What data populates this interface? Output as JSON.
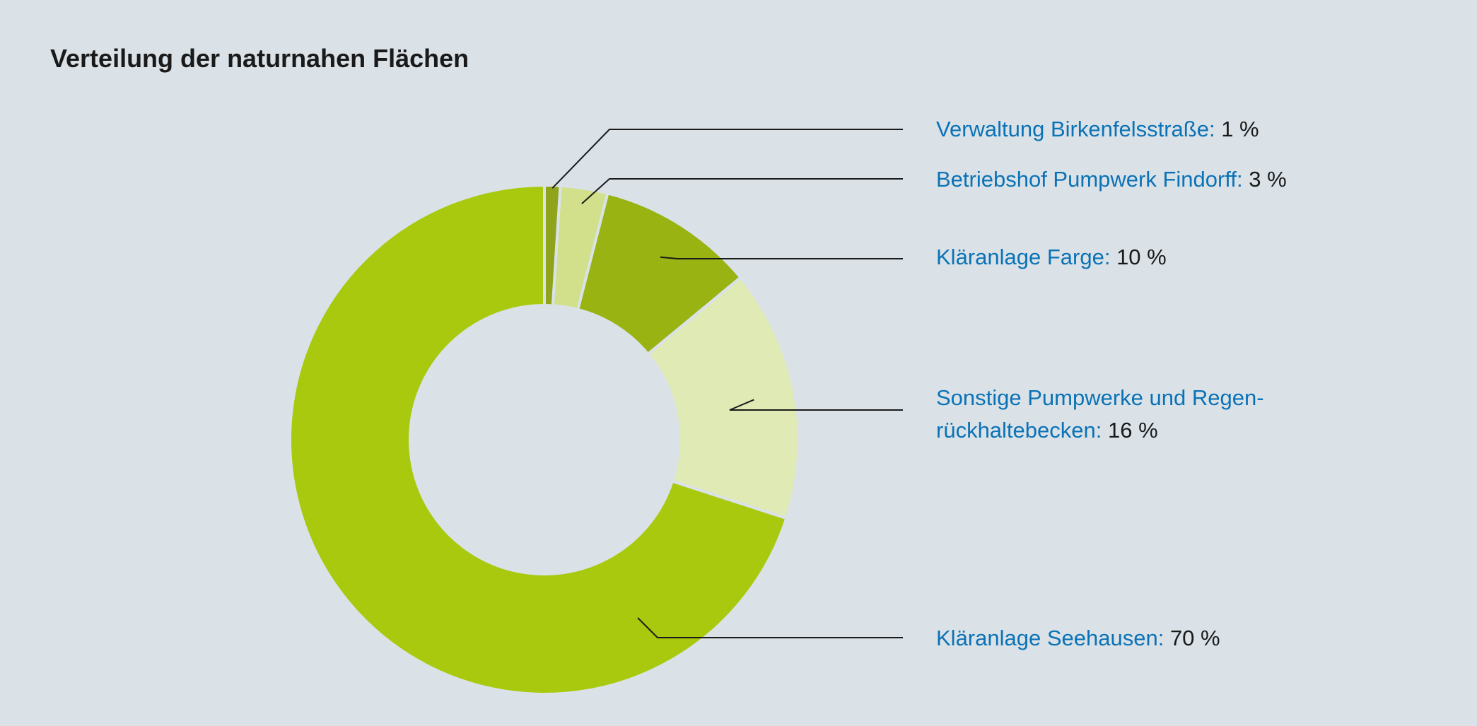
{
  "chart_data": {
    "type": "pie",
    "variant": "donut",
    "title": "Verteilung der naturnahen Flächen",
    "slices": [
      {
        "label": "Verwaltung Birkenfelsstraße:",
        "value": 1,
        "value_label": "1 %",
        "color": "#8fa41a"
      },
      {
        "label": "Betriebshof Pumpwerk Findorff:",
        "value": 3,
        "value_label": "3 %",
        "color": "#d2e08b"
      },
      {
        "label": "Kläranlage Farge:",
        "value": 10,
        "value_label": "10 %",
        "color": "#98b312"
      },
      {
        "label_lines": [
          "Sonstige Pumpwerke und Regen-",
          "rückhaltebecken:"
        ],
        "value": 16,
        "value_label": "16 %",
        "color": "#e0eab5"
      },
      {
        "label": "Kläranlage Seehausen:",
        "value": 70,
        "value_label": "70 %",
        "color": "#a9c90e"
      }
    ],
    "legend": "right"
  }
}
